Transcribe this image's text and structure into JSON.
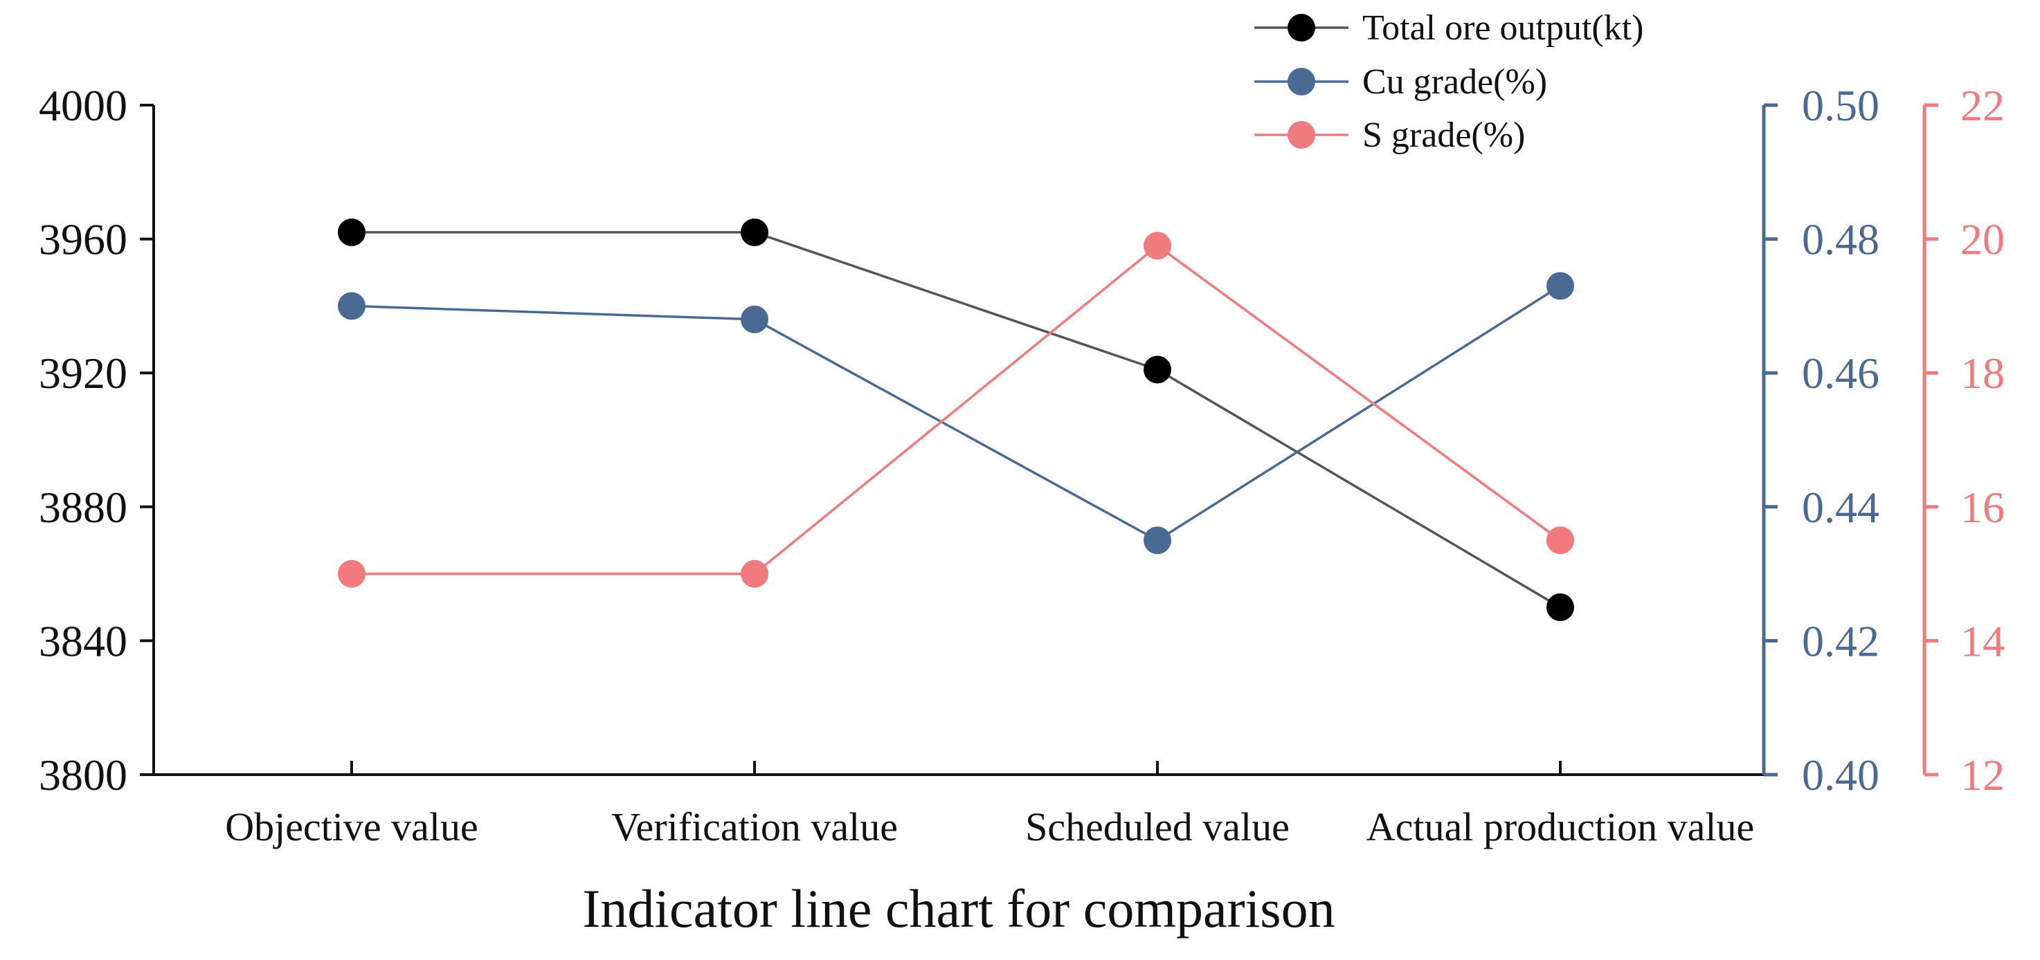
{
  "chart_data": {
    "type": "line",
    "title": "Indicator line chart for comparison",
    "xlabel": "Indicator line chart for comparison",
    "categories": [
      "Objective value",
      "Verification value",
      "Scheduled value",
      "Actual production value"
    ],
    "grid": false,
    "legend_position": "top-right",
    "axes": {
      "left": {
        "range": [
          3800,
          4000
        ],
        "ticks": [
          3800,
          3840,
          3880,
          3920,
          3960,
          4000
        ],
        "tick_labels": [
          "3800",
          "3840",
          "3880",
          "3920",
          "3960",
          "4000"
        ],
        "color": "#111111"
      },
      "right1": {
        "range": [
          0.4,
          0.5
        ],
        "ticks": [
          0.4,
          0.42,
          0.44,
          0.46,
          0.48,
          0.5
        ],
        "tick_labels": [
          "0.40",
          "0.42",
          "0.44",
          "0.46",
          "0.48",
          "0.50"
        ],
        "color": "#4a6a94"
      },
      "right2": {
        "range": [
          12,
          22
        ],
        "ticks": [
          12,
          14,
          16,
          18,
          20,
          22
        ],
        "tick_labels": [
          "12",
          "14",
          "16",
          "18",
          "20",
          "22"
        ],
        "color": "#f07a7e"
      }
    },
    "series": [
      {
        "name": "Total ore output(kt)",
        "axis": "left",
        "values": [
          3962,
          3962,
          3921,
          3850
        ],
        "line_color": "#555555",
        "marker_color": "#000000"
      },
      {
        "name": "Cu grade(%)",
        "axis": "right1",
        "values": [
          0.47,
          0.468,
          0.435,
          0.473
        ],
        "line_color": "#4a6a94",
        "marker_color": "#4a6a94"
      },
      {
        "name": "S grade(%)",
        "axis": "right2",
        "values": [
          15.0,
          15.0,
          19.9,
          15.5
        ],
        "line_color": "#f07a7e",
        "marker_color": "#f07a7e"
      }
    ]
  }
}
